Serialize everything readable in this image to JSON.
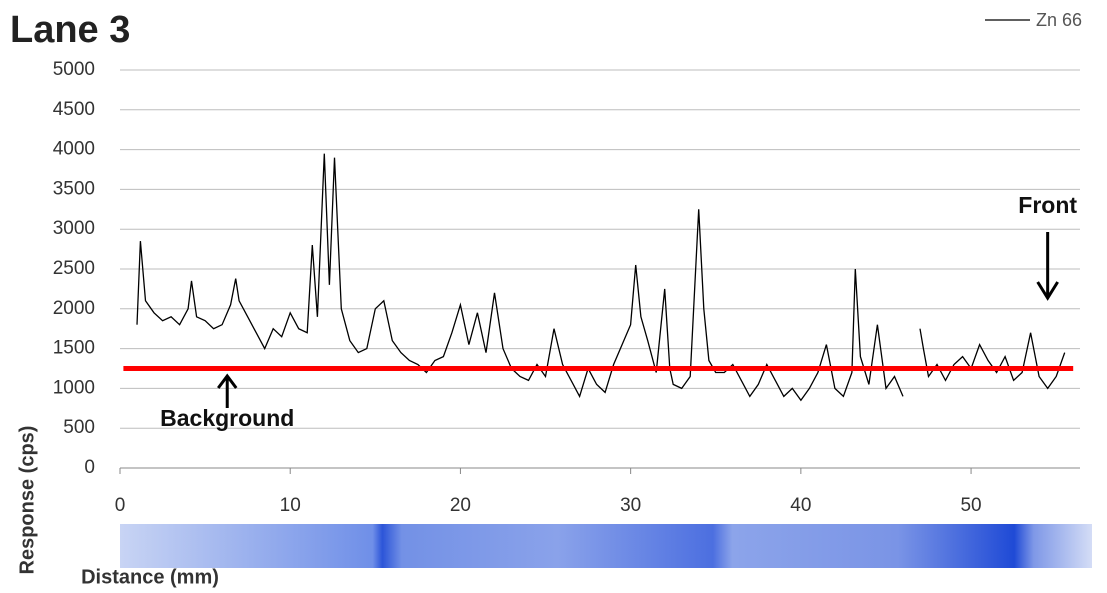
{
  "chart_data": {
    "type": "line",
    "title": "Lane 3",
    "y_label": "Response (cps)",
    "x_label": "Distance (mm)",
    "xlim": [
      0,
      56.4
    ],
    "ylim": [
      0,
      5000
    ],
    "xticks": [
      0,
      10,
      20,
      30,
      40,
      50
    ],
    "yticks": [
      0,
      500,
      1000,
      1500,
      2000,
      2500,
      3000,
      3500,
      4000,
      4500,
      5000
    ],
    "grid": true,
    "legend": "top-right",
    "x": [
      1.0,
      1.2,
      1.5,
      2.0,
      2.5,
      3.0,
      3.5,
      4.0,
      4.2,
      4.5,
      5.0,
      5.5,
      6.0,
      6.5,
      6.8,
      7.0,
      7.5,
      8.0,
      8.5,
      9.0,
      9.5,
      10.0,
      10.5,
      11.0,
      11.3,
      11.6,
      12.0,
      12.3,
      12.6,
      13.0,
      13.5,
      14.0,
      14.5,
      15.0,
      15.5,
      16.0,
      16.5,
      17.0,
      17.5,
      18.0,
      18.5,
      19.0,
      19.5,
      20.0,
      20.5,
      21.0,
      21.5,
      22.0,
      22.5,
      23.0,
      23.5,
      24.0,
      24.5,
      25.0,
      25.5,
      26.0,
      26.5,
      27.0,
      27.5,
      28.0,
      28.5,
      29.0,
      29.5,
      30.0,
      30.3,
      30.6,
      31.0,
      31.5,
      32.0,
      32.3,
      32.5,
      33.0,
      33.5,
      34.0,
      34.3,
      34.6,
      35.0,
      35.5,
      36.0,
      36.5,
      37.0,
      37.5,
      38.0,
      38.5,
      39.0,
      39.5,
      40.0,
      40.5,
      41.0,
      41.5,
      42.0,
      42.5,
      43.0,
      43.2,
      43.5,
      44.0,
      44.5,
      45.0,
      45.5,
      46.0,
      46.3,
      47.0,
      47.2,
      47.5,
      48.0,
      48.5,
      49.0,
      49.5,
      50.0,
      50.5,
      51.0,
      51.5,
      52.0,
      52.5,
      53.0,
      53.5,
      54.0,
      54.5,
      55.0,
      55.5
    ],
    "series": [
      {
        "name": "Zn 66",
        "color": "#000000",
        "values": [
          1800,
          2850,
          2100,
          1950,
          1850,
          1900,
          1800,
          2000,
          2350,
          1900,
          1850,
          1750,
          1800,
          2050,
          2380,
          2100,
          1900,
          1700,
          1500,
          1750,
          1650,
          1950,
          1750,
          1700,
          2800,
          1900,
          3950,
          2300,
          3900,
          2000,
          1600,
          1450,
          1500,
          2000,
          2100,
          1600,
          1450,
          1350,
          1300,
          1200,
          1350,
          1400,
          1700,
          2050,
          1550,
          1950,
          1450,
          2200,
          1500,
          1250,
          1150,
          1100,
          1300,
          1150,
          1750,
          1300,
          1100,
          900,
          1250,
          1050,
          950,
          1300,
          1550,
          1800,
          2550,
          1900,
          1600,
          1200,
          2250,
          1250,
          1050,
          1000,
          1150,
          3250,
          2000,
          1350,
          1200,
          1200,
          1300,
          1100,
          900,
          1050,
          1300,
          1100,
          900,
          1000,
          850,
          1000,
          1200,
          1550,
          1000,
          900,
          1200,
          2500,
          1400,
          1050,
          1800,
          1000,
          1150,
          900,
          null,
          1750,
          1500,
          1150,
          1300,
          1100,
          1300,
          1400,
          1250,
          1550,
          1350,
          1200,
          1400,
          1100,
          1200,
          1700,
          1150,
          1000,
          1150,
          1450
        ]
      }
    ],
    "background_line": {
      "value": 1250,
      "x": [
        0.2,
        56
      ],
      "color": "#ff0000"
    },
    "annotations": [
      {
        "text": "Background",
        "x": 6.3
      },
      {
        "text": "Front",
        "x": 54.5
      }
    ]
  }
}
